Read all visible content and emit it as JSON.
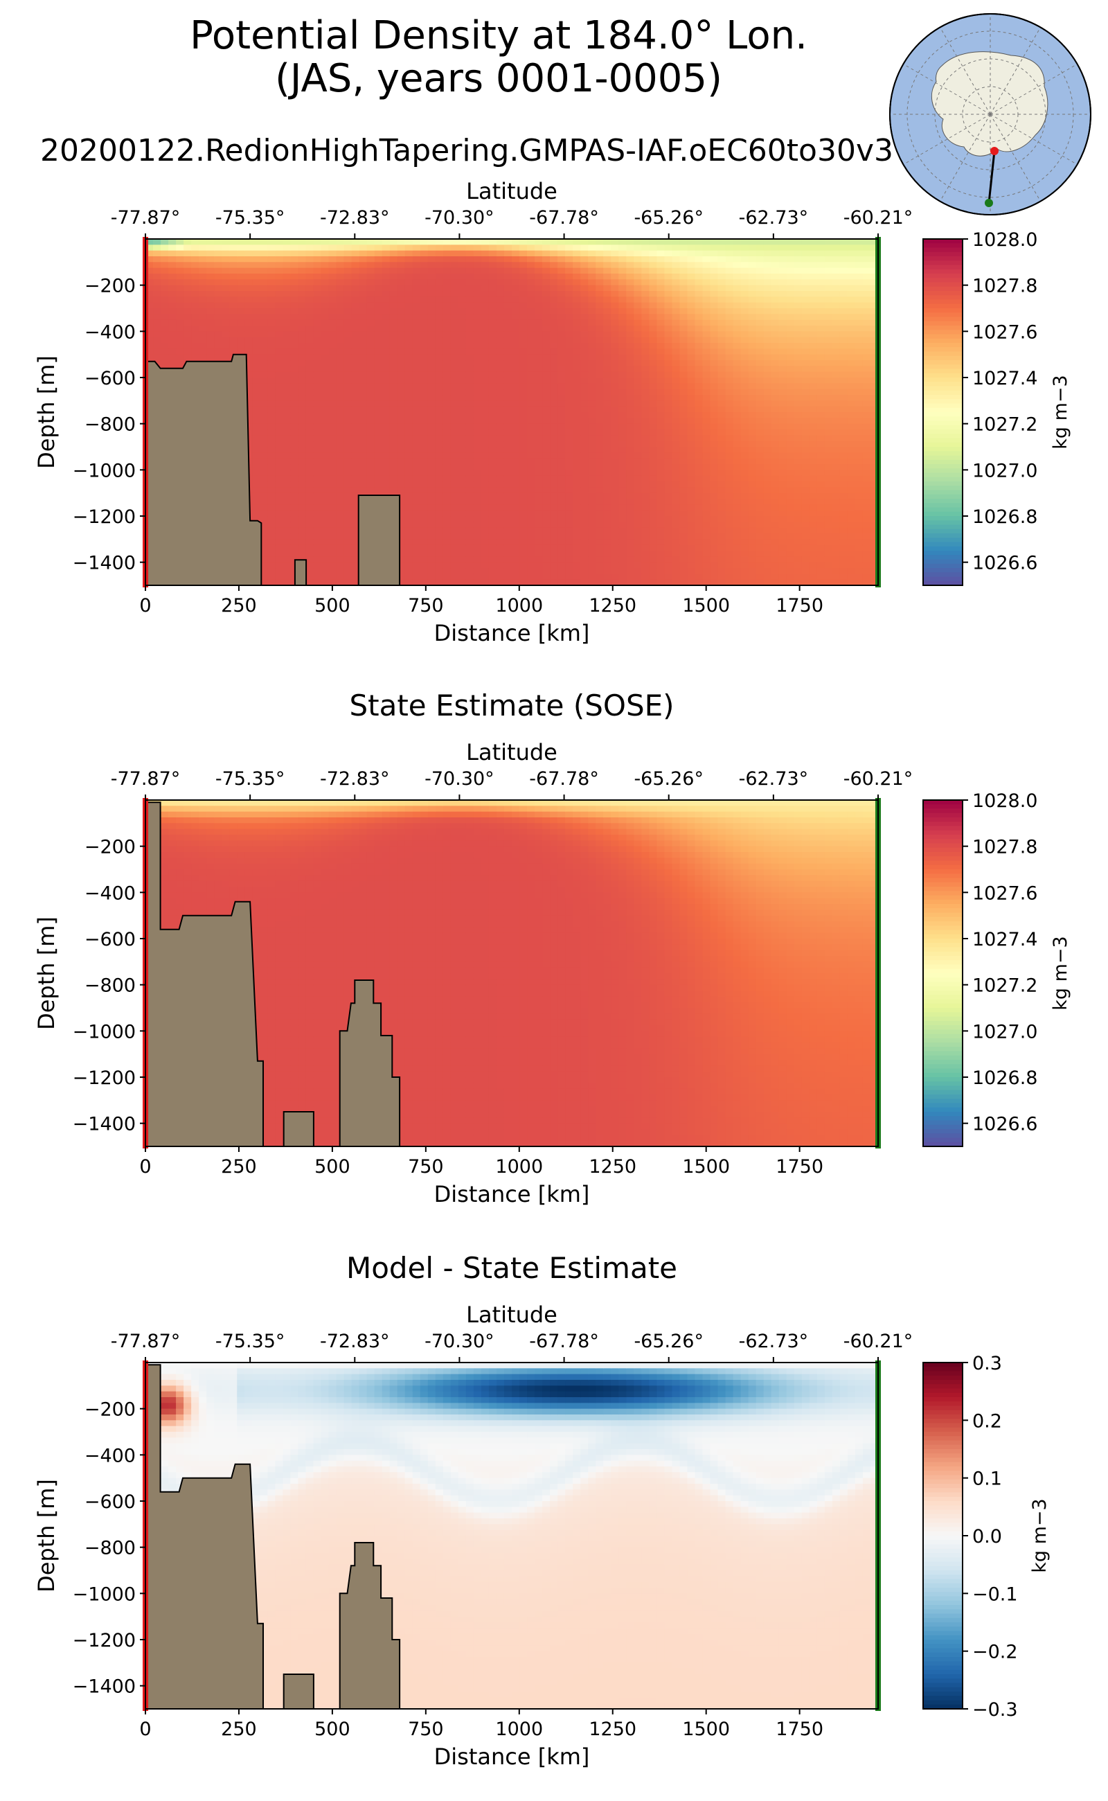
{
  "figure": {
    "title_line1": "Potential Density at 184.0° Lon.",
    "title_line2": "(JAS, years 0001-0005)",
    "run_name": "20200122.RedionHighTapering.GMPAS-IAF.oEC60to30v3"
  },
  "colors": {
    "land": "#8f8068",
    "start_marker": "#e41a1c",
    "end_marker": "#1a7a1a",
    "map_ocean": "#9fbce4",
    "map_land": "#efeee0",
    "missing": "#ffffff"
  },
  "inset_map": {
    "projection": "south-polar-stereographic",
    "section_start": "-77.87°",
    "section_end": "-60.21°"
  },
  "chart_data": [
    {
      "type": "heatmap",
      "title": "",
      "xlabel": "Distance [km]",
      "ylabel": "Depth [m]",
      "top_axis_label": "Latitude",
      "xlim": [
        0,
        1960
      ],
      "ylim": [
        -1500,
        0
      ],
      "xticks": [
        0,
        250,
        500,
        750,
        1000,
        1250,
        1500,
        1750
      ],
      "xtick_labels": [
        "0",
        "250",
        "500",
        "750",
        "1000",
        "1250",
        "1500",
        "1750"
      ],
      "yticks": [
        -200,
        -400,
        -600,
        -800,
        -1000,
        -1200,
        -1400
      ],
      "ytick_labels": [
        "−200",
        "−400",
        "−600",
        "−800",
        "−1000",
        "−1200",
        "−1400"
      ],
      "top_ticks_km": [
        0,
        280,
        560,
        840,
        1120,
        1400,
        1680,
        1960
      ],
      "top_tick_labels": [
        "-77.87°",
        "-75.35°",
        "-72.83°",
        "-70.30°",
        "-67.78°",
        "-65.26°",
        "-62.73°",
        "-60.21°"
      ],
      "colorbar": {
        "cmap": "Spectral_r",
        "vmin": 1026.5,
        "vmax": 1028.0,
        "ticks": [
          1028.0,
          1027.8,
          1027.6,
          1027.4,
          1027.2,
          1027.0,
          1026.8,
          1026.6
        ],
        "tick_labels": [
          "1028.0",
          "1027.8",
          "1027.6",
          "1027.4",
          "1027.2",
          "1027.0",
          "1026.8",
          "1026.6"
        ],
        "label": "kg m−3"
      },
      "field": {
        "surface_value": 1027.15,
        "deep_value": 1027.8,
        "fresh_surface_value": 1026.85,
        "fresh_surface_extent_km": 120,
        "fresh_surface_depth_m": 60,
        "offshore_transition_km": 1450
      },
      "bathymetry_km_m": [
        [
          0,
          -1500
        ],
        [
          0,
          -530
        ],
        [
          25,
          -530
        ],
        [
          40,
          -560
        ],
        [
          100,
          -560
        ],
        [
          110,
          -530
        ],
        [
          230,
          -530
        ],
        [
          235,
          -500
        ],
        [
          270,
          -500
        ],
        [
          280,
          -1220
        ],
        [
          300,
          -1220
        ],
        [
          310,
          -1230
        ],
        [
          310,
          -1500
        ],
        [
          400,
          -1500
        ],
        [
          400,
          -1390
        ],
        [
          430,
          -1390
        ],
        [
          430,
          -1500
        ],
        [
          570,
          -1500
        ],
        [
          570,
          -1110
        ],
        [
          680,
          -1110
        ],
        [
          680,
          -1500
        ]
      ]
    },
    {
      "type": "heatmap",
      "title": "State Estimate (SOSE)",
      "xlabel": "Distance [km]",
      "ylabel": "Depth [m]",
      "top_axis_label": "Latitude",
      "xlim": [
        0,
        1960
      ],
      "ylim": [
        -1500,
        0
      ],
      "xticks": [
        0,
        250,
        500,
        750,
        1000,
        1250,
        1500,
        1750
      ],
      "xtick_labels": [
        "0",
        "250",
        "500",
        "750",
        "1000",
        "1250",
        "1500",
        "1750"
      ],
      "yticks": [
        -200,
        -400,
        -600,
        -800,
        -1000,
        -1200,
        -1400
      ],
      "ytick_labels": [
        "−200",
        "−400",
        "−600",
        "−800",
        "−1000",
        "−1200",
        "−1400"
      ],
      "top_ticks_km": [
        0,
        280,
        560,
        840,
        1120,
        1400,
        1680,
        1960
      ],
      "top_tick_labels": [
        "-77.87°",
        "-75.35°",
        "-72.83°",
        "-70.30°",
        "-67.78°",
        "-65.26°",
        "-62.73°",
        "-60.21°"
      ],
      "colorbar": {
        "cmap": "Spectral_r",
        "vmin": 1026.5,
        "vmax": 1028.0,
        "ticks": [
          1028.0,
          1027.8,
          1027.6,
          1027.4,
          1027.2,
          1027.0,
          1026.8,
          1026.6
        ],
        "tick_labels": [
          "1028.0",
          "1027.8",
          "1027.6",
          "1027.4",
          "1027.2",
          "1027.0",
          "1026.8",
          "1026.6"
        ],
        "label": "kg m−3"
      },
      "field": {
        "surface_value": 1027.45,
        "deep_value": 1027.8,
        "fresh_surface_value": 1027.45,
        "fresh_surface_extent_km": 0,
        "fresh_surface_depth_m": 0,
        "offshore_transition_km": 1500
      },
      "bathymetry_km_m": [
        [
          0,
          -1500
        ],
        [
          0,
          -10
        ],
        [
          40,
          -10
        ],
        [
          40,
          -560
        ],
        [
          90,
          -560
        ],
        [
          100,
          -500
        ],
        [
          230,
          -500
        ],
        [
          240,
          -440
        ],
        [
          280,
          -440
        ],
        [
          300,
          -1130
        ],
        [
          315,
          -1130
        ],
        [
          315,
          -1500
        ],
        [
          370,
          -1500
        ],
        [
          370,
          -1350
        ],
        [
          450,
          -1350
        ],
        [
          450,
          -1500
        ],
        [
          520,
          -1500
        ],
        [
          520,
          -1000
        ],
        [
          540,
          -1000
        ],
        [
          550,
          -880
        ],
        [
          560,
          -880
        ],
        [
          560,
          -780
        ],
        [
          610,
          -780
        ],
        [
          610,
          -880
        ],
        [
          630,
          -880
        ],
        [
          630,
          -1020
        ],
        [
          660,
          -1020
        ],
        [
          660,
          -1200
        ],
        [
          680,
          -1200
        ],
        [
          680,
          -1500
        ]
      ]
    },
    {
      "type": "heatmap",
      "title": "Model - State Estimate",
      "xlabel": "Distance [km]",
      "ylabel": "Depth [m]",
      "top_axis_label": "Latitude",
      "xlim": [
        0,
        1960
      ],
      "ylim": [
        -1500,
        0
      ],
      "xticks": [
        0,
        250,
        500,
        750,
        1000,
        1250,
        1500,
        1750
      ],
      "xtick_labels": [
        "0",
        "250",
        "500",
        "750",
        "1000",
        "1250",
        "1500",
        "1750"
      ],
      "yticks": [
        -200,
        -400,
        -600,
        -800,
        -1000,
        -1200,
        -1400
      ],
      "ytick_labels": [
        "−200",
        "−400",
        "−600",
        "−800",
        "−1000",
        "−1200",
        "−1400"
      ],
      "top_ticks_km": [
        0,
        280,
        560,
        840,
        1120,
        1400,
        1680,
        1960
      ],
      "top_tick_labels": [
        "-77.87°",
        "-75.35°",
        "-72.83°",
        "-70.30°",
        "-67.78°",
        "-65.26°",
        "-62.73°",
        "-60.21°"
      ],
      "colorbar": {
        "cmap": "RdBu_r",
        "vmin": -0.3,
        "vmax": 0.3,
        "ticks": [
          0.3,
          0.2,
          0.1,
          0.0,
          -0.1,
          -0.2,
          -0.3
        ],
        "tick_labels": [
          "0.3",
          "0.2",
          "0.1",
          "0.0",
          "−0.1",
          "−0.2",
          "−0.3"
        ],
        "label": "kg m−3"
      },
      "field": {
        "surface_anomaly_min": -0.3,
        "surface_anomaly_center_km": 1150,
        "nearshore_anomaly_max": 0.25,
        "interior_anomaly": 0.06
      },
      "bathymetry_km_m": [
        [
          0,
          -1500
        ],
        [
          0,
          -10
        ],
        [
          40,
          -10
        ],
        [
          40,
          -560
        ],
        [
          90,
          -560
        ],
        [
          100,
          -500
        ],
        [
          230,
          -500
        ],
        [
          240,
          -440
        ],
        [
          280,
          -440
        ],
        [
          300,
          -1130
        ],
        [
          315,
          -1130
        ],
        [
          315,
          -1500
        ],
        [
          370,
          -1500
        ],
        [
          370,
          -1350
        ],
        [
          450,
          -1350
        ],
        [
          450,
          -1500
        ],
        [
          520,
          -1500
        ],
        [
          520,
          -1000
        ],
        [
          540,
          -1000
        ],
        [
          550,
          -880
        ],
        [
          560,
          -880
        ],
        [
          560,
          -780
        ],
        [
          610,
          -780
        ],
        [
          610,
          -880
        ],
        [
          630,
          -880
        ],
        [
          630,
          -1020
        ],
        [
          660,
          -1020
        ],
        [
          660,
          -1200
        ],
        [
          680,
          -1200
        ],
        [
          680,
          -1500
        ]
      ]
    }
  ]
}
